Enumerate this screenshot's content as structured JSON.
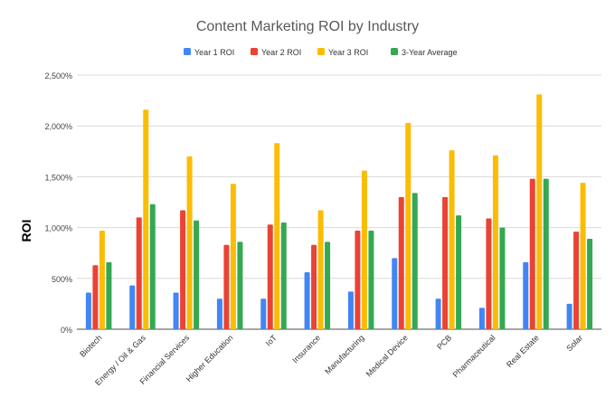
{
  "chart_data": {
    "type": "bar",
    "title": "Content Marketing ROI by Industry",
    "xlabel": "",
    "ylabel": "ROI",
    "ylim": [
      0,
      2500
    ],
    "yticks": [
      0,
      500,
      1000,
      1500,
      2000,
      2500
    ],
    "ytick_labels": [
      "0%",
      "500%",
      "1,000%",
      "1,500%",
      "2,000%",
      "2,500%"
    ],
    "grid": true,
    "legend_position": "top",
    "categories": [
      "Biotech",
      "Energy / Oil & Gas",
      "Financial Services",
      "Higher Education",
      "IoT",
      "Insurance",
      "Manufacturing",
      "Medical Device",
      "PCB",
      "Pharmaceutical",
      "Real Estate",
      "Solar"
    ],
    "series": [
      {
        "name": "Year 1 ROI",
        "color": "#4285f4",
        "values": [
          360,
          430,
          360,
          300,
          300,
          560,
          370,
          700,
          300,
          210,
          660,
          250
        ]
      },
      {
        "name": "Year 2 ROI",
        "color": "#ea4335",
        "values": [
          630,
          1100,
          1170,
          830,
          1030,
          830,
          970,
          1300,
          1300,
          1090,
          1480,
          960
        ]
      },
      {
        "name": "Year 3 ROI",
        "color": "#fbbc04",
        "values": [
          970,
          2160,
          1700,
          1430,
          1830,
          1170,
          1560,
          2030,
          1760,
          1710,
          2310,
          1440
        ]
      },
      {
        "name": "3-Year Average",
        "color": "#34a853",
        "values": [
          660,
          1230,
          1070,
          860,
          1050,
          860,
          970,
          1340,
          1120,
          1000,
          1480,
          890
        ]
      }
    ]
  }
}
